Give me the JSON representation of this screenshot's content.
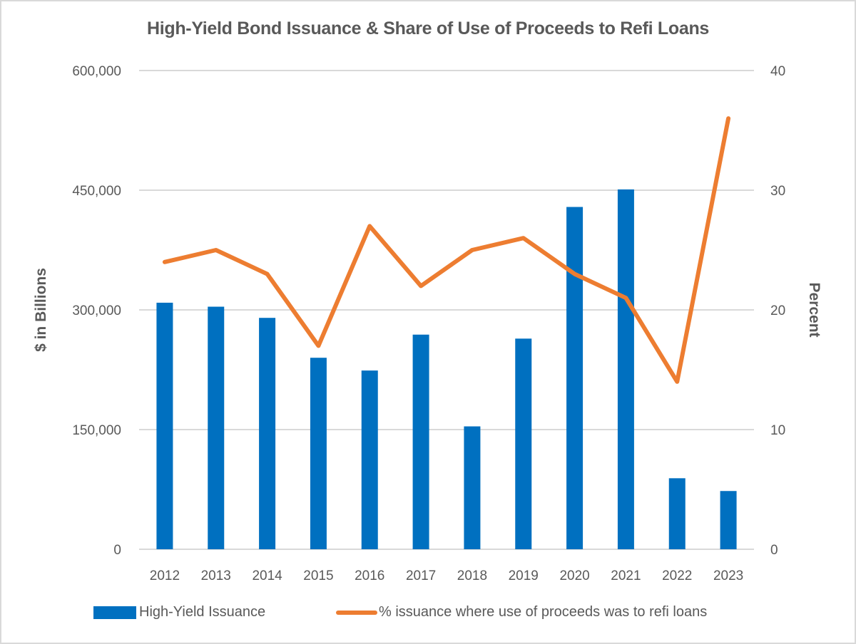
{
  "chart_data": {
    "type": "bar+line",
    "title": "High-Yield Bond Issuance & Share of Use of Proceeds to Refi Loans",
    "categories": [
      "2012",
      "2013",
      "2014",
      "2015",
      "2016",
      "2017",
      "2018",
      "2019",
      "2020",
      "2021",
      "2022",
      "2023"
    ],
    "series": [
      {
        "name": "High-Yield Issuance",
        "type": "bar",
        "axis": "left",
        "color": "#0070c0",
        "values": [
          309000,
          304000,
          290000,
          240000,
          224000,
          269000,
          154000,
          264000,
          429000,
          451000,
          89000,
          73000
        ]
      },
      {
        "name": "% issuance where use of proceeds was to refi loans",
        "type": "line",
        "axis": "right",
        "color": "#ed7d31",
        "values": [
          24,
          25,
          23,
          17,
          27,
          22,
          25,
          26,
          23,
          21,
          14,
          36
        ]
      }
    ],
    "ylabel": "$ in Billions",
    "y2label": "Percent",
    "ylim": [
      0,
      600000
    ],
    "y2lim": [
      0,
      40
    ],
    "yticks": [
      "0",
      "150,000",
      "300,000",
      "450,000",
      "600,000"
    ],
    "y2ticks": [
      "0",
      "10",
      "20",
      "30",
      "40"
    ],
    "grid": true,
    "legend_position": "bottom"
  },
  "legend": {
    "bar_label": "High-Yield Issuance",
    "line_label": "% issuance where use of proceeds was to refi loans"
  }
}
